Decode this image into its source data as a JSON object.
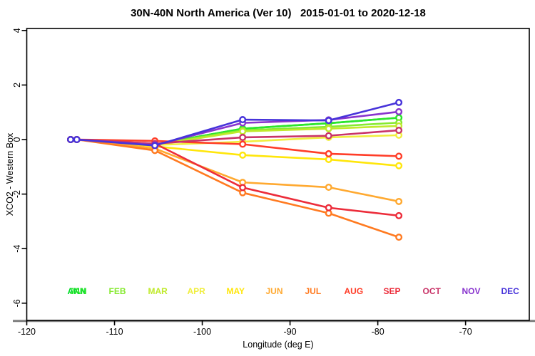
{
  "figure": {
    "title": "30N-40N North America (Ver 10)   2015-01-01 to 2020-12-18",
    "xlabel": "Longitude (deg E)",
    "ylabel": "XCO2 - Western Box"
  },
  "chart_data": {
    "type": "line",
    "title": "30N-40N North America (Ver 10)   2015-01-01 to 2020-12-18",
    "xlabel": "Longitude (deg E)",
    "ylabel": "XCO2 - Western Box",
    "xlim": [
      -120,
      -62.7
    ],
    "ylim": [
      -6.6,
      4.1
    ],
    "x_ticks": [
      -120,
      -110,
      -100,
      -90,
      -80,
      -70
    ],
    "y_ticks": [
      4,
      2,
      0,
      -2,
      -4,
      -6
    ],
    "grid": false,
    "marker": "open-circle",
    "x": [
      -115,
      -114.3,
      -105.4,
      -95.4,
      -85.6,
      -77.6
    ],
    "series": [
      {
        "name": "ANN",
        "color": "#00DC28",
        "values": [
          0,
          0,
          -0.18,
          0.4,
          0.6,
          0.8
        ]
      },
      {
        "name": "JAN",
        "color": "#2CE52C",
        "values": [
          0,
          0,
          -0.18,
          0.4,
          0.6,
          0.8
        ]
      },
      {
        "name": "FEB",
        "color": "#86EA30",
        "values": [
          0,
          0,
          -0.18,
          0.34,
          0.47,
          0.62
        ]
      },
      {
        "name": "MAR",
        "color": "#C0EA2C",
        "values": [
          0,
          0,
          -0.2,
          0.3,
          0.4,
          0.5
        ]
      },
      {
        "name": "APR",
        "color": "#F0EE3E",
        "values": [
          0,
          0,
          -0.2,
          -0.08,
          0.08,
          0.16
        ]
      },
      {
        "name": "MAY",
        "color": "#FFE60A",
        "values": [
          0,
          0,
          -0.25,
          -0.57,
          -0.73,
          -0.96
        ]
      },
      {
        "name": "JUN",
        "color": "#FFA930",
        "values": [
          0,
          0,
          -0.33,
          -1.57,
          -1.75,
          -2.27
        ]
      },
      {
        "name": "JUL",
        "color": "#FF7A20",
        "values": [
          0,
          0,
          -0.4,
          -1.95,
          -2.7,
          -3.58
        ]
      },
      {
        "name": "AUG",
        "color": "#FF3D28",
        "values": [
          0,
          0,
          -0.05,
          -0.17,
          -0.52,
          -0.61
        ]
      },
      {
        "name": "SEP",
        "color": "#EC2C3A",
        "values": [
          0,
          0,
          -0.15,
          -1.76,
          -2.5,
          -2.79
        ]
      },
      {
        "name": "OCT",
        "color": "#C93468",
        "values": [
          0,
          0,
          -0.15,
          0.08,
          0.14,
          0.34
        ]
      },
      {
        "name": "NOV",
        "color": "#8834CE",
        "values": [
          0,
          0,
          -0.2,
          0.61,
          0.72,
          1.02
        ]
      },
      {
        "name": "DEC",
        "color": "#4733DA",
        "values": [
          0,
          0,
          -0.22,
          0.73,
          0.7,
          1.36
        ]
      }
    ],
    "legend": {
      "position": "bottom-inside",
      "entries": [
        {
          "label": "ANN",
          "color": "#00DC28"
        },
        {
          "label": "JAN",
          "color": "#2CE52C"
        },
        {
          "label": "FEB",
          "color": "#86EA30"
        },
        {
          "label": "MAR",
          "color": "#C0EA2C"
        },
        {
          "label": "APR",
          "color": "#F0EE3E"
        },
        {
          "label": "MAY",
          "color": "#FFE60A"
        },
        {
          "label": "JUN",
          "color": "#FFA930"
        },
        {
          "label": "JUL",
          "color": "#FF7A20"
        },
        {
          "label": "AUG",
          "color": "#FF3D28"
        },
        {
          "label": "SEP",
          "color": "#EC2C3A"
        },
        {
          "label": "OCT",
          "color": "#C93468"
        },
        {
          "label": "NOV",
          "color": "#8834CE"
        },
        {
          "label": "DEC",
          "color": "#4733DA"
        }
      ]
    }
  }
}
